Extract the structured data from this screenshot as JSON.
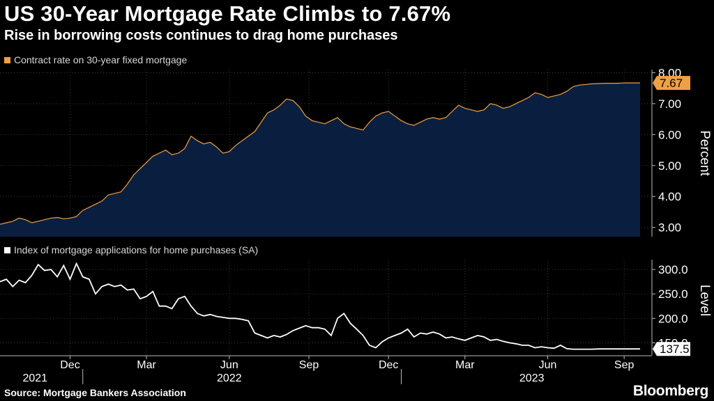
{
  "header": {
    "title": "US 30-Year Mortgage Rate Climbs to 7.67%",
    "subtitle": "Rise in borrowing costs continues to drag home purchases"
  },
  "footer": {
    "source": "Source: Mortgage Bankers Association",
    "brand": "Bloomberg"
  },
  "colors": {
    "background": "#000000",
    "rate_line": "#f0a044",
    "rate_fill": "#0a1f3f",
    "index_line": "#ffffff",
    "grid": "#3a3a3a",
    "axis": "#bbbbbb"
  },
  "chart_data": [
    {
      "type": "area",
      "title": "Contract rate on 30-year fixed mortgage",
      "ylabel": "Percent",
      "ylim": [
        2.7,
        8.1
      ],
      "yticks": [
        "3.00",
        "4.00",
        "5.00",
        "6.00",
        "7.00",
        "8.00"
      ],
      "ytick_values": [
        3,
        4,
        5,
        6,
        7,
        8
      ],
      "last_value_label": "7.67",
      "x_range": [
        2021.74,
        2023.75
      ],
      "x": [
        2021.74,
        2021.76,
        2021.78,
        2021.8,
        2021.82,
        2021.84,
        2021.86,
        2021.88,
        2021.9,
        2021.92,
        2021.94,
        2021.96,
        2021.98,
        2022.0,
        2022.02,
        2022.04,
        2022.06,
        2022.08,
        2022.1,
        2022.12,
        2022.14,
        2022.16,
        2022.18,
        2022.2,
        2022.22,
        2022.24,
        2022.26,
        2022.28,
        2022.3,
        2022.32,
        2022.34,
        2022.36,
        2022.38,
        2022.4,
        2022.42,
        2022.44,
        2022.46,
        2022.48,
        2022.5,
        2022.52,
        2022.54,
        2022.56,
        2022.58,
        2022.6,
        2022.62,
        2022.64,
        2022.66,
        2022.68,
        2022.7,
        2022.72,
        2022.74,
        2022.76,
        2022.78,
        2022.8,
        2022.82,
        2022.84,
        2022.86,
        2022.88,
        2022.9,
        2022.92,
        2022.94,
        2022.96,
        2022.98,
        2023.0,
        2023.02,
        2023.04,
        2023.06,
        2023.08,
        2023.1,
        2023.12,
        2023.14,
        2023.16,
        2023.18,
        2023.2,
        2023.22,
        2023.24,
        2023.26,
        2023.28,
        2023.3,
        2023.32,
        2023.34,
        2023.36,
        2023.38,
        2023.4,
        2023.42,
        2023.44,
        2023.46,
        2023.48,
        2023.5,
        2023.52,
        2023.54,
        2023.56,
        2023.58,
        2023.6,
        2023.62,
        2023.64,
        2023.66,
        2023.68,
        2023.7,
        2023.72,
        2023.75
      ],
      "values": [
        3.1,
        3.15,
        3.2,
        3.3,
        3.25,
        3.15,
        3.2,
        3.25,
        3.3,
        3.32,
        3.28,
        3.3,
        3.35,
        3.55,
        3.65,
        3.75,
        3.85,
        4.05,
        4.1,
        4.15,
        4.4,
        4.7,
        4.9,
        5.1,
        5.3,
        5.4,
        5.5,
        5.35,
        5.4,
        5.55,
        5.95,
        5.8,
        5.7,
        5.75,
        5.6,
        5.4,
        5.45,
        5.65,
        5.8,
        5.95,
        6.1,
        6.4,
        6.7,
        6.8,
        6.95,
        7.15,
        7.1,
        6.9,
        6.6,
        6.45,
        6.4,
        6.35,
        6.45,
        6.55,
        6.35,
        6.25,
        6.2,
        6.15,
        6.4,
        6.6,
        6.7,
        6.75,
        6.6,
        6.45,
        6.35,
        6.3,
        6.4,
        6.5,
        6.55,
        6.5,
        6.55,
        6.75,
        6.95,
        6.85,
        6.8,
        6.75,
        6.8,
        7.0,
        6.95,
        6.85,
        6.9,
        7.0,
        7.1,
        7.2,
        7.35,
        7.3,
        7.2,
        7.25,
        7.3,
        7.4,
        7.55,
        7.6,
        7.62,
        7.64,
        7.65,
        7.66,
        7.66,
        7.66,
        7.67,
        7.67,
        7.67
      ]
    },
    {
      "type": "line",
      "title": "Index of mortgage applications for home purchases (SA)",
      "ylabel": "Level",
      "ylim": [
        125,
        320
      ],
      "yticks": [
        "150.0",
        "200.0",
        "250.0",
        "300.0"
      ],
      "ytick_values": [
        150,
        200,
        250,
        300
      ],
      "last_value_label": "137.5",
      "x_range": [
        2021.74,
        2023.75
      ],
      "x": [
        2021.74,
        2021.76,
        2021.78,
        2021.8,
        2021.82,
        2021.84,
        2021.86,
        2021.88,
        2021.9,
        2021.92,
        2021.94,
        2021.96,
        2021.98,
        2022.0,
        2022.02,
        2022.04,
        2022.06,
        2022.08,
        2022.1,
        2022.12,
        2022.14,
        2022.16,
        2022.18,
        2022.2,
        2022.22,
        2022.24,
        2022.26,
        2022.28,
        2022.3,
        2022.32,
        2022.34,
        2022.36,
        2022.38,
        2022.4,
        2022.42,
        2022.44,
        2022.46,
        2022.48,
        2022.5,
        2022.52,
        2022.54,
        2022.56,
        2022.58,
        2022.6,
        2022.62,
        2022.64,
        2022.66,
        2022.68,
        2022.7,
        2022.72,
        2022.74,
        2022.76,
        2022.78,
        2022.8,
        2022.82,
        2022.84,
        2022.86,
        2022.88,
        2022.9,
        2022.92,
        2022.94,
        2022.96,
        2022.98,
        2023.0,
        2023.02,
        2023.04,
        2023.06,
        2023.08,
        2023.1,
        2023.12,
        2023.14,
        2023.16,
        2023.18,
        2023.2,
        2023.22,
        2023.24,
        2023.26,
        2023.28,
        2023.3,
        2023.32,
        2023.34,
        2023.36,
        2023.38,
        2023.4,
        2023.42,
        2023.44,
        2023.46,
        2023.48,
        2023.5,
        2023.52,
        2023.54,
        2023.56,
        2023.58,
        2023.6,
        2023.62,
        2023.64,
        2023.66,
        2023.68,
        2023.7,
        2023.72,
        2023.75
      ],
      "values": [
        275,
        280,
        265,
        278,
        273,
        288,
        310,
        298,
        300,
        285,
        308,
        280,
        312,
        285,
        280,
        250,
        265,
        270,
        265,
        268,
        258,
        260,
        240,
        245,
        255,
        225,
        225,
        220,
        240,
        245,
        225,
        210,
        205,
        208,
        204,
        202,
        200,
        200,
        198,
        195,
        170,
        165,
        160,
        165,
        162,
        167,
        175,
        180,
        185,
        181,
        181,
        178,
        165,
        200,
        210,
        190,
        178,
        165,
        145,
        140,
        152,
        160,
        165,
        170,
        178,
        162,
        170,
        168,
        172,
        168,
        160,
        162,
        158,
        155,
        160,
        165,
        162,
        155,
        157,
        153,
        150,
        148,
        145,
        145,
        140,
        142,
        140,
        139,
        145,
        138,
        137,
        137,
        137,
        137,
        137.5,
        137.5,
        137.5,
        137.5,
        137.5,
        137.5,
        137.5
      ]
    }
  ],
  "x_axis": {
    "month_labels": [
      {
        "label": "Dec",
        "x": 2021.96
      },
      {
        "label": "Mar",
        "x": 2022.2
      },
      {
        "label": "Jun",
        "x": 2022.46
      },
      {
        "label": "Sep",
        "x": 2022.71
      },
      {
        "label": "Dec",
        "x": 2022.96
      },
      {
        "label": "Mar",
        "x": 2023.2
      },
      {
        "label": "Jun",
        "x": 2023.46
      },
      {
        "label": "Sep",
        "x": 2023.7
      }
    ],
    "year_labels": [
      {
        "label": "2021",
        "x": 2021.85
      },
      {
        "label": "2022",
        "x": 2022.46
      },
      {
        "label": "2023",
        "x": 2023.41
      }
    ],
    "year_separators": [
      2022.0,
      2023.0
    ]
  }
}
